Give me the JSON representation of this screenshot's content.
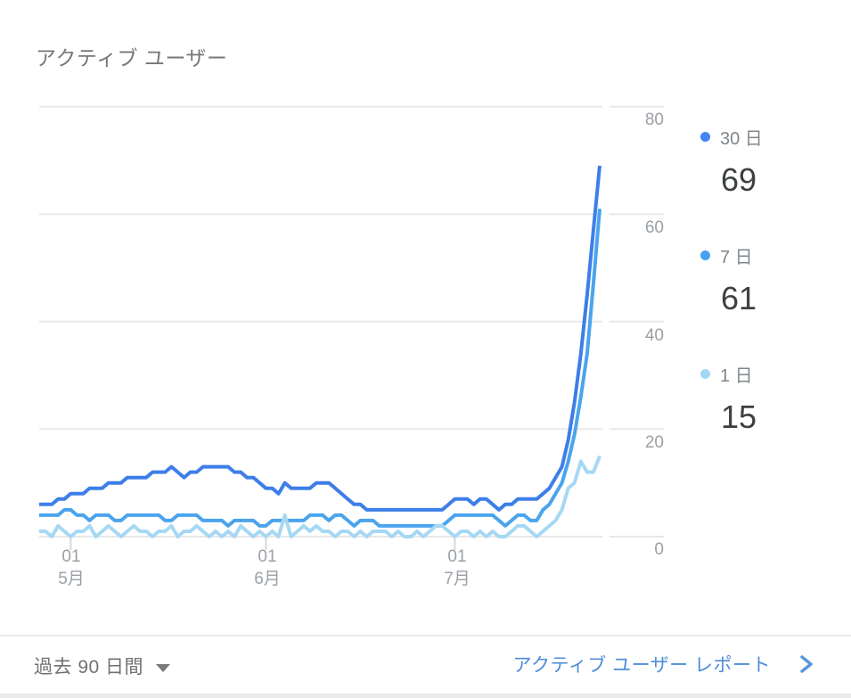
{
  "card": {
    "title": "アクティブ ユーザー"
  },
  "legend": [
    {
      "id": "30d",
      "label": "30 日",
      "value": "69",
      "color": "#4285f4"
    },
    {
      "id": "7d",
      "label": "7 日",
      "value": "61",
      "color": "#45a2f0"
    },
    {
      "id": "1d",
      "label": "1 日",
      "value": "15",
      "color": "#a3d6f3"
    }
  ],
  "footer": {
    "range_label": "過去 90 日間",
    "report_link_label": "アクティブ ユーザー レポート"
  },
  "colors": {
    "series_30d": "#3d7ee8",
    "series_7d": "#4aa4ed",
    "series_1d": "#a6d8f3",
    "gridline": "#e8e8e8",
    "axis_text": "#9aa0a6",
    "link": "#4e8cd9",
    "title_text": "#76777b",
    "value_text": "#3c4043"
  },
  "chart_data": {
    "type": "line",
    "title": "アクティブ ユーザー",
    "xlabel": "",
    "ylabel": "",
    "ylim": [
      0,
      80
    ],
    "y_ticks": [
      0,
      20,
      40,
      60,
      80
    ],
    "grid": true,
    "legend_position": "right",
    "x_range_days": 90,
    "x_tick_indices": [
      5,
      36,
      66
    ],
    "x_tick_labels": [
      {
        "day": "01",
        "month": "5月"
      },
      {
        "day": "01",
        "month": "6月"
      },
      {
        "day": "01",
        "month": "7月"
      }
    ],
    "series": [
      {
        "id": "30d",
        "name": "30 日",
        "color": "#3d7ee8",
        "current_value": 69,
        "values": [
          6,
          6,
          6,
          7,
          7,
          8,
          8,
          8,
          9,
          9,
          9,
          10,
          10,
          10,
          11,
          11,
          11,
          11,
          12,
          12,
          12,
          13,
          12,
          11,
          12,
          12,
          13,
          13,
          13,
          13,
          13,
          12,
          12,
          11,
          11,
          10,
          9,
          9,
          8,
          10,
          9,
          9,
          9,
          9,
          10,
          10,
          10,
          9,
          8,
          7,
          6,
          6,
          5,
          5,
          5,
          5,
          5,
          5,
          5,
          5,
          5,
          5,
          5,
          5,
          5,
          6,
          7,
          7,
          7,
          6,
          7,
          7,
          6,
          5,
          6,
          6,
          7,
          7,
          7,
          7,
          8,
          9,
          11,
          13,
          18,
          25,
          34,
          45,
          57,
          69
        ]
      },
      {
        "id": "7d",
        "name": "7 日",
        "color": "#4aa4ed",
        "current_value": 61,
        "values": [
          4,
          4,
          4,
          4,
          5,
          5,
          4,
          4,
          3,
          4,
          4,
          4,
          3,
          3,
          4,
          4,
          4,
          4,
          4,
          4,
          3,
          3,
          4,
          4,
          4,
          4,
          3,
          3,
          3,
          3,
          2,
          3,
          3,
          3,
          3,
          2,
          2,
          3,
          3,
          3,
          3,
          3,
          3,
          4,
          4,
          4,
          3,
          4,
          4,
          3,
          2,
          3,
          3,
          3,
          2,
          2,
          2,
          2,
          2,
          2,
          2,
          2,
          2,
          2,
          2,
          3,
          4,
          4,
          4,
          4,
          4,
          4,
          4,
          3,
          2,
          3,
          4,
          4,
          3,
          3,
          5,
          6,
          8,
          10,
          14,
          19,
          26,
          34,
          47,
          61
        ]
      },
      {
        "id": "1d",
        "name": "1 日",
        "color": "#a6d8f3",
        "current_value": 15,
        "values": [
          1,
          1,
          0,
          2,
          1,
          0,
          1,
          1,
          2,
          0,
          1,
          2,
          1,
          0,
          1,
          2,
          1,
          1,
          0,
          1,
          1,
          2,
          0,
          1,
          1,
          2,
          1,
          0,
          1,
          0,
          1,
          0,
          2,
          1,
          0,
          1,
          0,
          1,
          0,
          4,
          0,
          1,
          2,
          1,
          2,
          1,
          1,
          0,
          1,
          1,
          0,
          1,
          0,
          1,
          1,
          1,
          0,
          1,
          0,
          0,
          1,
          0,
          1,
          2,
          2,
          1,
          0,
          1,
          1,
          0,
          1,
          0,
          1,
          0,
          0,
          1,
          2,
          2,
          1,
          0,
          1,
          2,
          3,
          5,
          9,
          10,
          14,
          12,
          12,
          15
        ]
      }
    ]
  }
}
